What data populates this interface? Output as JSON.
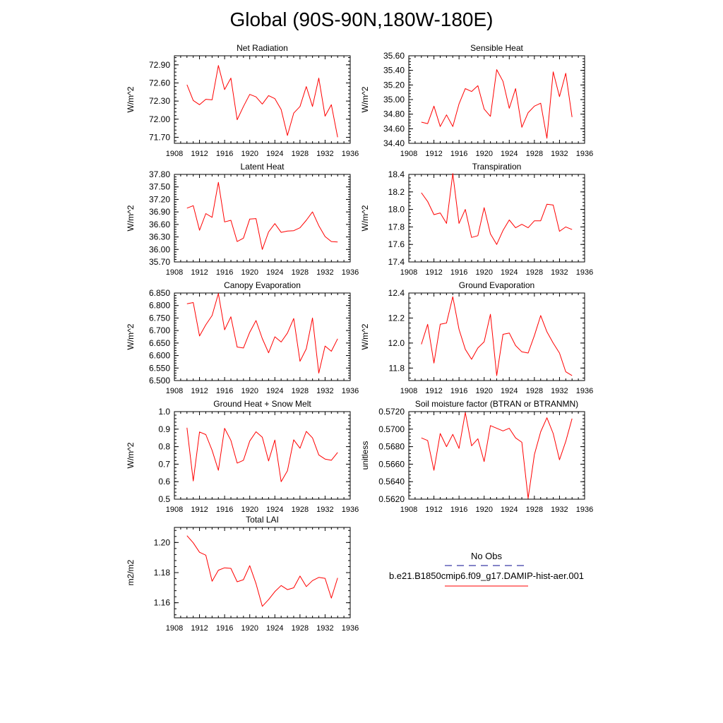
{
  "page_title": "Global (90S-90N,180W-180E)",
  "legend": {
    "obs_label": "No Obs",
    "model_label": "b.e21.B1850cmip6.f09_g17.DAMIP-hist-aer.001",
    "obs_color": "#3a3aa8",
    "model_color": "#ff0000"
  },
  "chart_data": [
    {
      "type": "line",
      "title": "Net Radiation",
      "ylabel": "W/m^2",
      "xlabel": "",
      "xlim": [
        1908,
        1936
      ],
      "xticks": [
        1908,
        1912,
        1916,
        1920,
        1924,
        1928,
        1932,
        1936
      ],
      "ylim": [
        71.6,
        73.05
      ],
      "yticks": [
        71.7,
        72.0,
        72.3,
        72.6,
        72.9
      ],
      "ydecimals": 2,
      "series": [
        {
          "color": "#ff0000",
          "x": [
            1910,
            1911,
            1912,
            1913,
            1914,
            1915,
            1916,
            1917,
            1918,
            1919,
            1920,
            1921,
            1922,
            1923,
            1924,
            1925,
            1926,
            1927,
            1928,
            1929,
            1930,
            1931,
            1932,
            1933,
            1934
          ],
          "y": [
            72.57,
            72.31,
            72.24,
            72.33,
            72.32,
            72.89,
            72.49,
            72.68,
            71.99,
            72.21,
            72.41,
            72.37,
            72.25,
            72.39,
            72.34,
            72.16,
            71.73,
            72.1,
            72.21,
            72.54,
            72.21,
            72.68,
            72.05,
            72.24,
            71.7
          ]
        }
      ]
    },
    {
      "type": "line",
      "title": "Sensible Heat",
      "ylabel": "W/m^2",
      "xlabel": "",
      "xlim": [
        1908,
        1936
      ],
      "xticks": [
        1908,
        1912,
        1916,
        1920,
        1924,
        1928,
        1932,
        1936
      ],
      "ylim": [
        34.4,
        35.6
      ],
      "yticks": [
        34.4,
        34.6,
        34.8,
        35.0,
        35.2,
        35.4,
        35.6
      ],
      "ydecimals": 2,
      "series": [
        {
          "color": "#ff0000",
          "x": [
            1910,
            1911,
            1912,
            1913,
            1914,
            1915,
            1916,
            1917,
            1918,
            1919,
            1920,
            1921,
            1922,
            1923,
            1924,
            1925,
            1926,
            1927,
            1928,
            1929,
            1930,
            1931,
            1932,
            1933,
            1934
          ],
          "y": [
            34.69,
            34.67,
            34.91,
            34.63,
            34.79,
            34.63,
            34.94,
            35.15,
            35.11,
            35.19,
            34.87,
            34.77,
            35.41,
            35.25,
            34.88,
            35.15,
            34.62,
            34.82,
            34.91,
            34.95,
            34.47,
            35.38,
            35.04,
            35.36,
            34.76
          ]
        }
      ]
    },
    {
      "type": "line",
      "title": "Latent Heat",
      "ylabel": "W/m^2",
      "xlabel": "",
      "xlim": [
        1908,
        1936
      ],
      "xticks": [
        1908,
        1912,
        1916,
        1920,
        1924,
        1928,
        1932,
        1936
      ],
      "ylim": [
        35.7,
        37.8
      ],
      "yticks": [
        35.7,
        36.0,
        36.3,
        36.6,
        36.9,
        37.2,
        37.5,
        37.8
      ],
      "ydecimals": 2,
      "series": [
        {
          "color": "#ff0000",
          "x": [
            1910,
            1911,
            1912,
            1913,
            1914,
            1915,
            1916,
            1917,
            1918,
            1919,
            1920,
            1921,
            1922,
            1923,
            1924,
            1925,
            1926,
            1927,
            1928,
            1929,
            1930,
            1931,
            1932,
            1933,
            1934
          ],
          "y": [
            36.99,
            37.05,
            36.46,
            36.86,
            36.77,
            37.61,
            36.66,
            36.7,
            36.19,
            36.27,
            36.73,
            36.74,
            36.0,
            36.42,
            36.62,
            36.41,
            36.44,
            36.45,
            36.52,
            36.7,
            36.9,
            36.57,
            36.31,
            36.19,
            36.18
          ]
        }
      ]
    },
    {
      "type": "line",
      "title": "Transpiration",
      "ylabel": "W/m^2",
      "xlabel": "",
      "xlim": [
        1908,
        1936
      ],
      "xticks": [
        1908,
        1912,
        1916,
        1920,
        1924,
        1928,
        1932,
        1936
      ],
      "ylim": [
        17.4,
        18.4
      ],
      "yticks": [
        17.4,
        17.6,
        17.8,
        18.0,
        18.2,
        18.4
      ],
      "ydecimals": 1,
      "series": [
        {
          "color": "#ff0000",
          "x": [
            1910,
            1911,
            1912,
            1913,
            1914,
            1915,
            1916,
            1917,
            1918,
            1919,
            1920,
            1921,
            1922,
            1923,
            1924,
            1925,
            1926,
            1927,
            1928,
            1929,
            1930,
            1931,
            1932,
            1933,
            1934
          ],
          "y": [
            18.19,
            18.09,
            17.94,
            17.96,
            17.84,
            18.41,
            17.84,
            18.0,
            17.68,
            17.7,
            18.02,
            17.72,
            17.6,
            17.76,
            17.88,
            17.79,
            17.83,
            17.79,
            17.87,
            17.87,
            18.06,
            18.05,
            17.75,
            17.8,
            17.77
          ]
        }
      ]
    },
    {
      "type": "line",
      "title": "Canopy Evaporation",
      "ylabel": "W/m^2",
      "xlabel": "",
      "xlim": [
        1908,
        1936
      ],
      "xticks": [
        1908,
        1912,
        1916,
        1920,
        1924,
        1928,
        1932,
        1936
      ],
      "ylim": [
        6.5,
        6.85
      ],
      "yticks": [
        6.5,
        6.55,
        6.6,
        6.65,
        6.7,
        6.75,
        6.8,
        6.85
      ],
      "ydecimals": 3,
      "series": [
        {
          "color": "#ff0000",
          "x": [
            1910,
            1911,
            1912,
            1913,
            1914,
            1915,
            1916,
            1917,
            1918,
            1919,
            1920,
            1921,
            1922,
            1923,
            1924,
            1925,
            1926,
            1927,
            1928,
            1929,
            1930,
            1931,
            1932,
            1933,
            1934
          ],
          "y": [
            6.807,
            6.812,
            6.678,
            6.723,
            6.76,
            6.848,
            6.703,
            6.755,
            6.634,
            6.63,
            6.693,
            6.74,
            6.668,
            6.611,
            6.675,
            6.654,
            6.69,
            6.748,
            6.577,
            6.627,
            6.75,
            6.53,
            6.638,
            6.617,
            6.667
          ]
        }
      ]
    },
    {
      "type": "line",
      "title": "Ground Evaporation",
      "ylabel": "W/m^2",
      "xlabel": "",
      "xlim": [
        1908,
        1936
      ],
      "xticks": [
        1908,
        1912,
        1916,
        1920,
        1924,
        1928,
        1932,
        1936
      ],
      "ylim": [
        11.7,
        12.4
      ],
      "yticks": [
        11.8,
        12.0,
        12.2,
        12.4
      ],
      "ydecimals": 1,
      "series": [
        {
          "color": "#ff0000",
          "x": [
            1910,
            1911,
            1912,
            1913,
            1914,
            1915,
            1916,
            1917,
            1918,
            1919,
            1920,
            1921,
            1922,
            1923,
            1924,
            1925,
            1926,
            1927,
            1928,
            1929,
            1930,
            1931,
            1932,
            1933,
            1934
          ],
          "y": [
            11.99,
            12.15,
            11.84,
            12.15,
            12.16,
            12.37,
            12.11,
            11.95,
            11.87,
            11.96,
            12.01,
            12.23,
            11.74,
            12.07,
            12.08,
            11.98,
            11.93,
            11.92,
            12.06,
            12.22,
            12.09,
            12.0,
            11.92,
            11.77,
            11.74
          ]
        }
      ]
    },
    {
      "type": "line",
      "title": "Ground Heat + Snow Melt",
      "ylabel": "W/m^2",
      "xlabel": "",
      "xlim": [
        1908,
        1936
      ],
      "xticks": [
        1908,
        1912,
        1916,
        1920,
        1924,
        1928,
        1932,
        1936
      ],
      "ylim": [
        0.5,
        1.0
      ],
      "yticks": [
        0.5,
        0.6,
        0.7,
        0.8,
        0.9,
        1.0
      ],
      "ydecimals": 1,
      "series": [
        {
          "color": "#ff0000",
          "x": [
            1910,
            1911,
            1912,
            1913,
            1914,
            1915,
            1916,
            1917,
            1918,
            1919,
            1920,
            1921,
            1922,
            1923,
            1924,
            1925,
            1926,
            1927,
            1928,
            1929,
            1930,
            1931,
            1932,
            1933,
            1934
          ],
          "y": [
            0.908,
            0.604,
            0.884,
            0.869,
            0.779,
            0.665,
            0.905,
            0.836,
            0.706,
            0.722,
            0.832,
            0.885,
            0.854,
            0.718,
            0.838,
            0.6,
            0.662,
            0.839,
            0.791,
            0.887,
            0.85,
            0.753,
            0.729,
            0.722,
            0.767
          ]
        }
      ]
    },
    {
      "type": "line",
      "title": "Soil moisture factor (BTRAN or BTRANMN)",
      "ylabel": "unitless",
      "xlabel": "",
      "xlim": [
        1908,
        1936
      ],
      "xticks": [
        1908,
        1912,
        1916,
        1920,
        1924,
        1928,
        1932,
        1936
      ],
      "ylim": [
        0.562,
        0.572
      ],
      "yticks": [
        0.562,
        0.564,
        0.566,
        0.568,
        0.57,
        0.572
      ],
      "ydecimals": 4,
      "series": [
        {
          "color": "#ff0000",
          "x": [
            1910,
            1911,
            1912,
            1913,
            1914,
            1915,
            1916,
            1917,
            1918,
            1919,
            1920,
            1921,
            1922,
            1923,
            1924,
            1925,
            1926,
            1927,
            1928,
            1929,
            1930,
            1931,
            1932,
            1933,
            1934
          ],
          "y": [
            0.569,
            0.5687,
            0.5653,
            0.5695,
            0.568,
            0.5694,
            0.5678,
            0.5719,
            0.5681,
            0.5689,
            0.5663,
            0.5704,
            0.5701,
            0.5698,
            0.5701,
            0.569,
            0.5685,
            0.5621,
            0.5671,
            0.5697,
            0.5713,
            0.5695,
            0.5665,
            0.5686,
            0.5712
          ]
        }
      ]
    },
    {
      "type": "line",
      "title": "Total LAI",
      "ylabel": "m2/m2",
      "xlabel": "",
      "xlim": [
        1908,
        1936
      ],
      "xticks": [
        1908,
        1912,
        1916,
        1920,
        1924,
        1928,
        1932,
        1936
      ],
      "ylim": [
        1.15,
        1.21
      ],
      "yticks": [
        1.16,
        1.18,
        1.2
      ],
      "ydecimals": 2,
      "series": [
        {
          "color": "#ff0000",
          "x": [
            1910,
            1911,
            1912,
            1913,
            1914,
            1915,
            1916,
            1917,
            1918,
            1919,
            1920,
            1921,
            1922,
            1923,
            1924,
            1925,
            1926,
            1927,
            1928,
            1929,
            1930,
            1931,
            1932,
            1933,
            1934
          ],
          "y": [
            1.2045,
            1.1998,
            1.1935,
            1.1916,
            1.1743,
            1.1816,
            1.1832,
            1.1828,
            1.1739,
            1.1753,
            1.1846,
            1.1727,
            1.1576,
            1.1621,
            1.1674,
            1.1714,
            1.1687,
            1.1699,
            1.1777,
            1.1707,
            1.1747,
            1.1768,
            1.1762,
            1.1631,
            1.1765
          ]
        }
      ]
    }
  ]
}
